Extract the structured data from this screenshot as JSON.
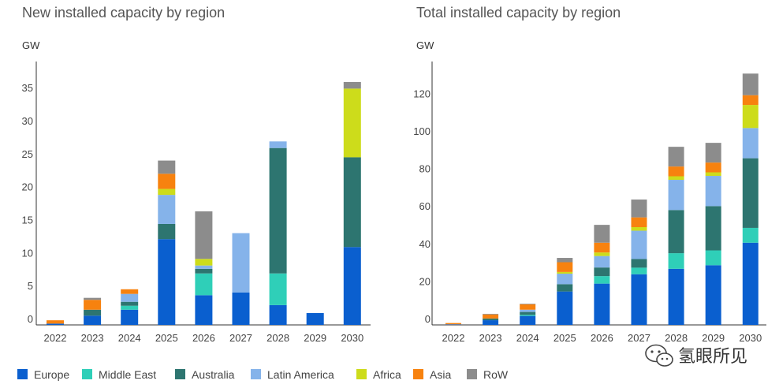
{
  "colors": {
    "Europe": "#0a5fcf",
    "Middle East": "#2fcfb8",
    "Australia": "#2d7570",
    "Latin America": "#85b3ea",
    "Africa": "#cddc1b",
    "Asia": "#f7820f",
    "RoW": "#8c8c8c"
  },
  "legend": [
    "Europe",
    "Middle East",
    "Australia",
    "Latin America",
    "Africa",
    "Asia",
    "RoW"
  ],
  "watermark": {
    "icon": "wechat-icon",
    "text": "氢眼所见"
  },
  "chart_data": [
    {
      "type": "bar",
      "stacked": true,
      "title": "New installed capacity by region",
      "ylabel": "GW",
      "ylim": [
        0,
        37
      ],
      "yticks": [
        0,
        5,
        10,
        15,
        20,
        25,
        30,
        35
      ],
      "categories": [
        "2022",
        "2023",
        "2024",
        "2025",
        "2026",
        "2027",
        "2028",
        "2029",
        "2030"
      ],
      "series": [
        {
          "name": "Europe",
          "values": [
            0.2,
            1.4,
            2.3,
            13.0,
            4.5,
            4.9,
            3.0,
            1.8,
            11.8
          ]
        },
        {
          "name": "Middle East",
          "values": [
            0.0,
            0.0,
            0.6,
            0.0,
            3.3,
            0.0,
            4.8,
            0.0,
            0.0
          ]
        },
        {
          "name": "Australia",
          "values": [
            0.0,
            0.9,
            0.6,
            2.3,
            0.7,
            0.0,
            19.0,
            0.0,
            13.6
          ]
        },
        {
          "name": "Latin America",
          "values": [
            0.0,
            0.0,
            1.2,
            4.4,
            0.5,
            9.0,
            1.0,
            0.0,
            0.0
          ]
        },
        {
          "name": "Africa",
          "values": [
            0.0,
            0.0,
            0.0,
            0.9,
            1.0,
            0.0,
            0.0,
            0.0,
            10.4
          ]
        },
        {
          "name": "Asia",
          "values": [
            0.5,
            1.5,
            0.7,
            2.3,
            0.0,
            0.0,
            0.0,
            0.0,
            0.0
          ]
        },
        {
          "name": "RoW",
          "values": [
            0.0,
            0.3,
            0.0,
            2.0,
            7.2,
            0.0,
            0.0,
            0.0,
            1.0
          ]
        }
      ]
    },
    {
      "type": "bar",
      "stacked": true,
      "title": "Total installed capacity by region",
      "ylabel": "GW",
      "ylim": [
        0,
        140
      ],
      "yticks": [
        0,
        20,
        40,
        60,
        80,
        100,
        120
      ],
      "categories": [
        "2022",
        "2023",
        "2024",
        "2025",
        "2026",
        "2027",
        "2028",
        "2029",
        "2030"
      ],
      "series": [
        {
          "name": "Europe",
          "values": [
            0.3,
            2.5,
            4.8,
            17.8,
            22.0,
            27.0,
            29.9,
            31.8,
            43.8
          ]
        },
        {
          "name": "Middle East",
          "values": [
            0.0,
            0.0,
            0.6,
            0.0,
            4.0,
            3.5,
            8.3,
            7.9,
            7.9
          ]
        },
        {
          "name": "Australia",
          "values": [
            0.0,
            0.9,
            1.5,
            3.9,
            4.6,
            4.6,
            23.0,
            23.6,
            37.1
          ]
        },
        {
          "name": "Latin America",
          "values": [
            0.0,
            0.0,
            1.2,
            5.6,
            6.1,
            15.1,
            16.1,
            16.1,
            16.1
          ]
        },
        {
          "name": "Africa",
          "values": [
            0.0,
            0.0,
            0.0,
            0.9,
            1.9,
            1.9,
            1.9,
            1.9,
            12.3
          ]
        },
        {
          "name": "Asia",
          "values": [
            0.7,
            2.2,
            2.9,
            5.2,
            5.2,
            5.2,
            5.2,
            5.2,
            5.2
          ]
        },
        {
          "name": "RoW",
          "values": [
            0.0,
            0.3,
            0.3,
            2.3,
            9.5,
            9.5,
            10.5,
            10.5,
            11.5
          ]
        }
      ]
    }
  ]
}
